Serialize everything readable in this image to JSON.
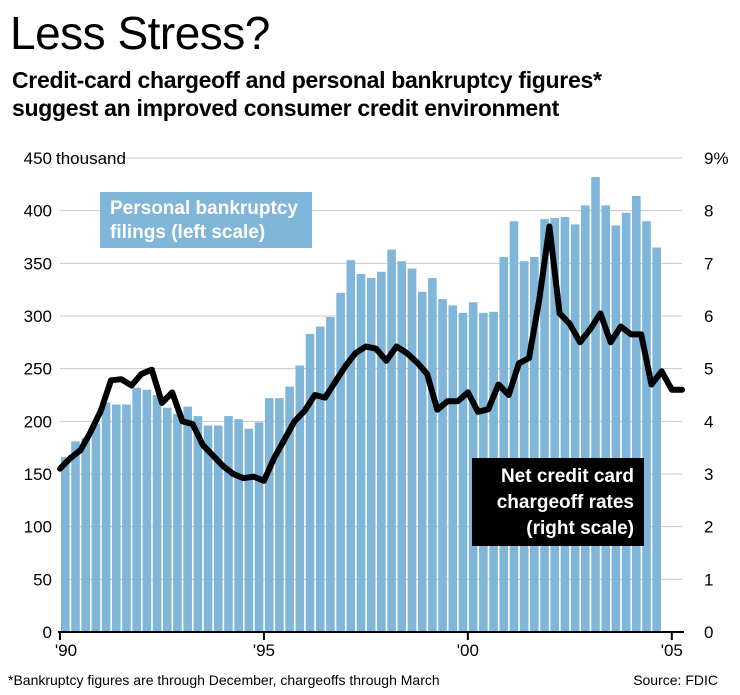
{
  "title": "Less Stress?",
  "subtitle_line1": "Credit-card chargeoff and personal bankruptcy figures*",
  "subtitle_line2": "suggest an improved consumer credit environment",
  "footnote": "*Bankruptcy figures are through December, chargeoffs through March",
  "source": "Source: FDIC",
  "colors": {
    "bars": "#7fb6da",
    "line": "#000000",
    "grid": "#c8c8c8"
  },
  "chart_data": {
    "type": "bar",
    "left_axis": {
      "ylim": [
        0,
        450
      ],
      "ticks": [
        0,
        50,
        100,
        150,
        200,
        250,
        300,
        350,
        400,
        450
      ],
      "tick_labels": [
        "0",
        "50",
        "100",
        "150",
        "200",
        "250",
        "300",
        "350",
        "400",
        "450"
      ],
      "unit_label": "thousand"
    },
    "right_axis": {
      "ylim": [
        0,
        9
      ],
      "ticks": [
        0,
        1,
        2,
        3,
        4,
        5,
        6,
        7,
        8,
        9
      ],
      "tick_labels": [
        "0",
        "1",
        "2",
        "3",
        "4",
        "5",
        "6",
        "7",
        "8",
        "9%"
      ]
    },
    "x_axis": {
      "range": [
        1990,
        2005.25
      ],
      "ticks": [
        1990,
        1995,
        2000,
        2005
      ],
      "tick_labels": [
        "'90",
        "'95",
        "'00",
        "'05"
      ]
    },
    "series": [
      {
        "name": "Personal bankruptcy filings (left scale)",
        "type": "bar",
        "axis": "left",
        "x": [
          1990.0,
          1990.25,
          1990.5,
          1990.75,
          1991.0,
          1991.25,
          1991.5,
          1991.75,
          1992.0,
          1992.25,
          1992.5,
          1992.75,
          1993.0,
          1993.25,
          1993.5,
          1993.75,
          1994.0,
          1994.25,
          1994.5,
          1994.75,
          1995.0,
          1995.25,
          1995.5,
          1995.75,
          1996.0,
          1996.25,
          1996.5,
          1996.75,
          1997.0,
          1997.25,
          1997.5,
          1997.75,
          1998.0,
          1998.25,
          1998.5,
          1998.75,
          1999.0,
          1999.25,
          1999.5,
          1999.75,
          2000.0,
          2000.25,
          2000.5,
          2000.75,
          2001.0,
          2001.25,
          2001.5,
          2001.75,
          2002.0,
          2002.25,
          2002.5,
          2002.75,
          2003.0,
          2003.25,
          2003.5,
          2003.75,
          2004.0,
          2004.25,
          2004.5,
          2004.75
        ],
        "values": [
          166,
          181,
          184,
          198,
          218,
          216,
          216,
          232,
          230,
          225,
          213,
          207,
          214,
          205,
          196,
          196,
          205,
          202,
          193,
          199,
          222,
          222,
          233,
          253,
          283,
          290,
          299,
          322,
          353,
          340,
          336,
          342,
          363,
          352,
          345,
          323,
          336,
          316,
          310,
          303,
          313,
          303,
          304,
          356,
          390,
          352,
          356,
          392,
          393,
          394,
          387,
          405,
          432,
          405,
          386,
          398,
          414,
          390,
          365,
          0
        ]
      },
      {
        "name": "Net credit card chargeoff rates (right scale)",
        "type": "line",
        "axis": "right",
        "x": [
          1990.0,
          1990.25,
          1990.5,
          1990.75,
          1991.0,
          1991.25,
          1991.5,
          1991.75,
          1992.0,
          1992.25,
          1992.5,
          1992.75,
          1993.0,
          1993.25,
          1993.5,
          1993.75,
          1994.0,
          1994.25,
          1994.5,
          1994.75,
          1995.0,
          1995.25,
          1995.5,
          1995.75,
          1996.0,
          1996.25,
          1996.5,
          1996.75,
          1997.0,
          1997.25,
          1997.5,
          1997.75,
          1998.0,
          1998.25,
          1998.5,
          1998.75,
          1999.0,
          1999.25,
          1999.5,
          1999.75,
          2000.0,
          2000.25,
          2000.5,
          2000.75,
          2001.0,
          2001.25,
          2001.5,
          2001.75,
          2002.0,
          2002.25,
          2002.5,
          2002.75,
          2003.0,
          2003.25,
          2003.5,
          2003.75,
          2004.0,
          2004.25,
          2004.5,
          2004.75,
          2005.0,
          2005.25
        ],
        "values": [
          3.1,
          3.3,
          3.45,
          3.8,
          4.2,
          4.78,
          4.8,
          4.68,
          4.9,
          4.98,
          4.35,
          4.55,
          4.0,
          3.95,
          3.55,
          3.35,
          3.15,
          3.0,
          2.92,
          2.95,
          2.87,
          3.3,
          3.65,
          4.0,
          4.2,
          4.5,
          4.45,
          4.75,
          5.05,
          5.3,
          5.42,
          5.38,
          5.15,
          5.42,
          5.3,
          5.12,
          4.9,
          4.22,
          4.38,
          4.38,
          4.55,
          4.18,
          4.23,
          4.7,
          4.5,
          5.1,
          5.2,
          6.3,
          7.7,
          6.05,
          5.85,
          5.5,
          5.75,
          6.05,
          5.5,
          5.8,
          5.65,
          5.65,
          4.7,
          4.95,
          4.6,
          4.6
        ]
      }
    ],
    "annotations": [
      {
        "lines": [
          "Personal bankruptcy",
          "filings (left scale)"
        ]
      },
      {
        "lines": [
          "Net credit card",
          "chargeoff rates",
          "(right scale)"
        ]
      }
    ],
    "grid": true,
    "legend": "none"
  }
}
